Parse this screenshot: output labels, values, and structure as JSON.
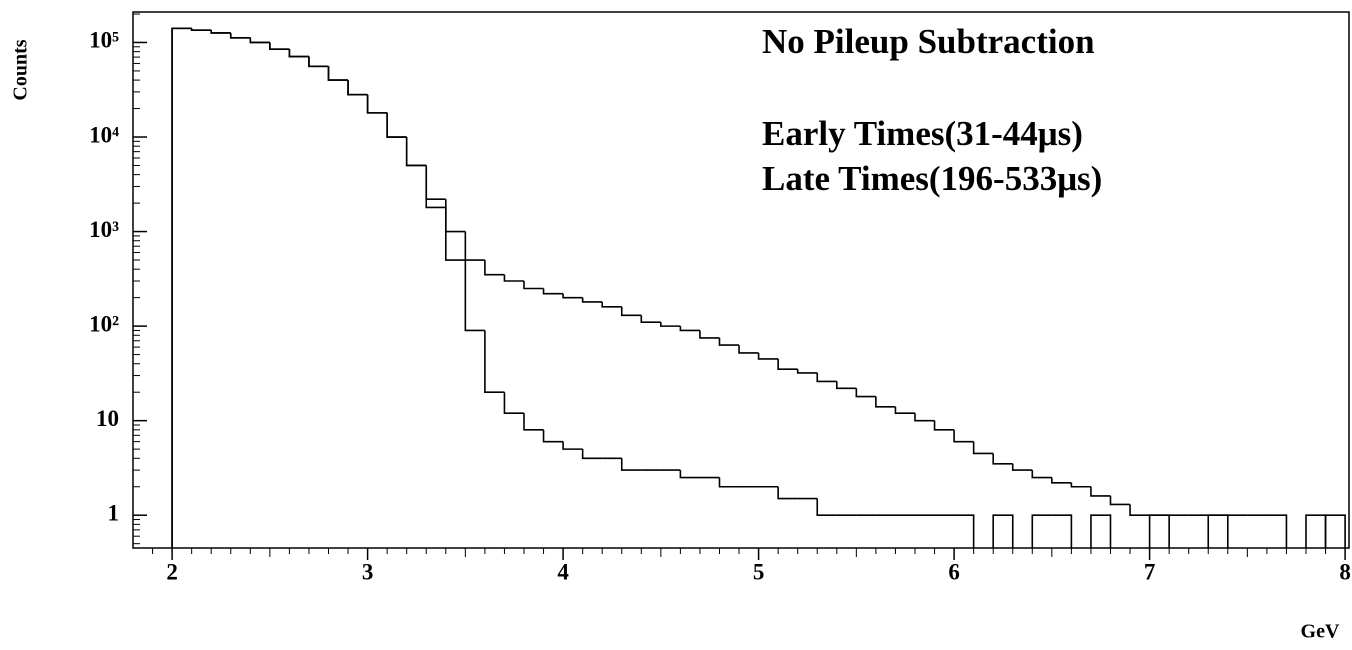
{
  "chart_data": {
    "type": "histogram",
    "title": "No Pileup Subtraction",
    "x_label": "GeV",
    "y_label": "Counts",
    "bins": [
      2.0,
      2.1,
      2.2,
      2.3,
      2.4,
      2.5,
      2.6,
      2.7,
      2.8,
      2.9,
      3.0,
      3.1,
      3.2,
      3.3,
      3.4,
      3.5,
      3.6,
      3.7,
      3.8,
      3.9,
      4.0,
      4.1,
      4.2,
      4.3,
      4.4,
      4.5,
      4.6,
      4.7,
      4.8,
      4.9,
      5.0,
      5.1,
      5.2,
      5.3,
      5.4,
      5.5,
      5.6,
      5.7,
      5.8,
      5.9,
      6.0,
      6.1,
      6.2,
      6.3,
      6.4,
      6.5,
      6.6,
      6.7,
      6.8,
      6.9,
      7.0,
      7.1,
      7.2,
      7.3,
      7.4,
      7.5,
      7.6,
      7.7,
      7.8,
      7.9,
      8.0
    ],
    "series": [
      {
        "name": "Early Times(31-44μs)",
        "color": "#000000",
        "values": [
          141000,
          135000,
          126000,
          112000,
          100000,
          85000,
          71000,
          56000,
          40000,
          28000,
          18000,
          10000,
          5000,
          2200,
          1000,
          500,
          350,
          300,
          250,
          220,
          200,
          180,
          160,
          130,
          110,
          100,
          90,
          75,
          63,
          52,
          45,
          35,
          32,
          26,
          22,
          18,
          14,
          12,
          10,
          8,
          6,
          4.5,
          3.5,
          3,
          2.5,
          2.2,
          2,
          1.6,
          1.3,
          1,
          1,
          1,
          1,
          1,
          1,
          1,
          1,
          null,
          null,
          1
        ]
      },
      {
        "name": "Late Times(196-533μs)",
        "color": "#000000",
        "values": [
          141000,
          135000,
          126000,
          112000,
          100000,
          85000,
          71000,
          56000,
          40000,
          28000,
          18000,
          10000,
          5000,
          1800,
          500,
          90,
          20,
          12,
          8,
          6,
          5,
          4,
          4,
          3,
          3,
          3,
          2.5,
          2.5,
          2,
          2,
          2,
          1.5,
          1.5,
          1,
          1,
          1,
          1,
          1,
          1,
          1,
          1,
          null,
          1,
          null,
          1,
          1,
          null,
          1,
          null,
          null,
          1,
          null,
          null,
          1,
          null,
          null,
          null,
          null,
          1,
          null
        ]
      }
    ],
    "xlim": [
      1.8,
      8.02
    ],
    "xticks": [
      2,
      3,
      4,
      5,
      6,
      7,
      8
    ],
    "ylim": [
      0.45,
      210000
    ],
    "yticks": [
      1,
      10,
      {
        "value": 100,
        "label": "10²"
      },
      {
        "value": 1000,
        "label": "10³"
      },
      {
        "value": 10000,
        "label": "10⁴"
      },
      {
        "value": 100000,
        "label": "10⁵"
      }
    ],
    "log_y": true,
    "grid": false
  }
}
